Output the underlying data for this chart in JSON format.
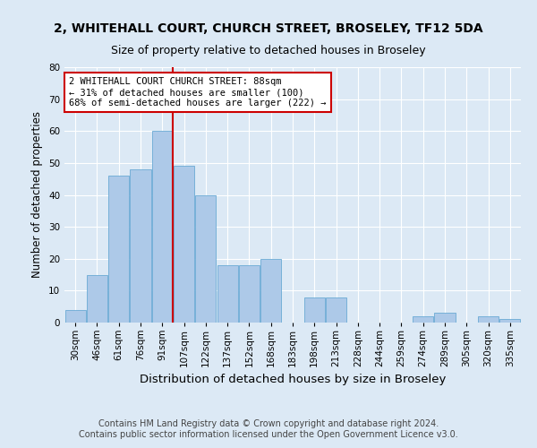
{
  "title1": "2, WHITEHALL COURT, CHURCH STREET, BROSELEY, TF12 5DA",
  "title2": "Size of property relative to detached houses in Broseley",
  "xlabel": "Distribution of detached houses by size in Broseley",
  "ylabel": "Number of detached properties",
  "footnote": "Contains HM Land Registry data © Crown copyright and database right 2024.\nContains public sector information licensed under the Open Government Licence v3.0.",
  "bin_labels": [
    "30sqm",
    "46sqm",
    "61sqm",
    "76sqm",
    "91sqm",
    "107sqm",
    "122sqm",
    "137sqm",
    "152sqm",
    "168sqm",
    "183sqm",
    "198sqm",
    "213sqm",
    "228sqm",
    "244sqm",
    "259sqm",
    "274sqm",
    "289sqm",
    "305sqm",
    "320sqm",
    "335sqm"
  ],
  "bar_heights": [
    4,
    15,
    46,
    48,
    60,
    49,
    40,
    18,
    18,
    20,
    0,
    8,
    8,
    0,
    0,
    0,
    2,
    3,
    0,
    2,
    1
  ],
  "bar_color": "#adc9e8",
  "bar_edge_color": "#6aaad4",
  "vline_x_index": 4,
  "vline_color": "#cc0000",
  "annotation_text": "2 WHITEHALL COURT CHURCH STREET: 88sqm\n← 31% of detached houses are smaller (100)\n68% of semi-detached houses are larger (222) →",
  "annotation_box_color": "#ffffff",
  "annotation_box_edge_color": "#cc0000",
  "ylim": [
    0,
    80
  ],
  "yticks": [
    0,
    10,
    20,
    30,
    40,
    50,
    60,
    70,
    80
  ],
  "background_color": "#dce9f5",
  "plot_bg_color": "#dce9f5",
  "grid_color": "#ffffff",
  "title1_fontsize": 10,
  "title2_fontsize": 9,
  "xlabel_fontsize": 9.5,
  "ylabel_fontsize": 8.5,
  "tick_fontsize": 7.5,
  "annotation_fontsize": 7.5,
  "footnote_fontsize": 7.0
}
